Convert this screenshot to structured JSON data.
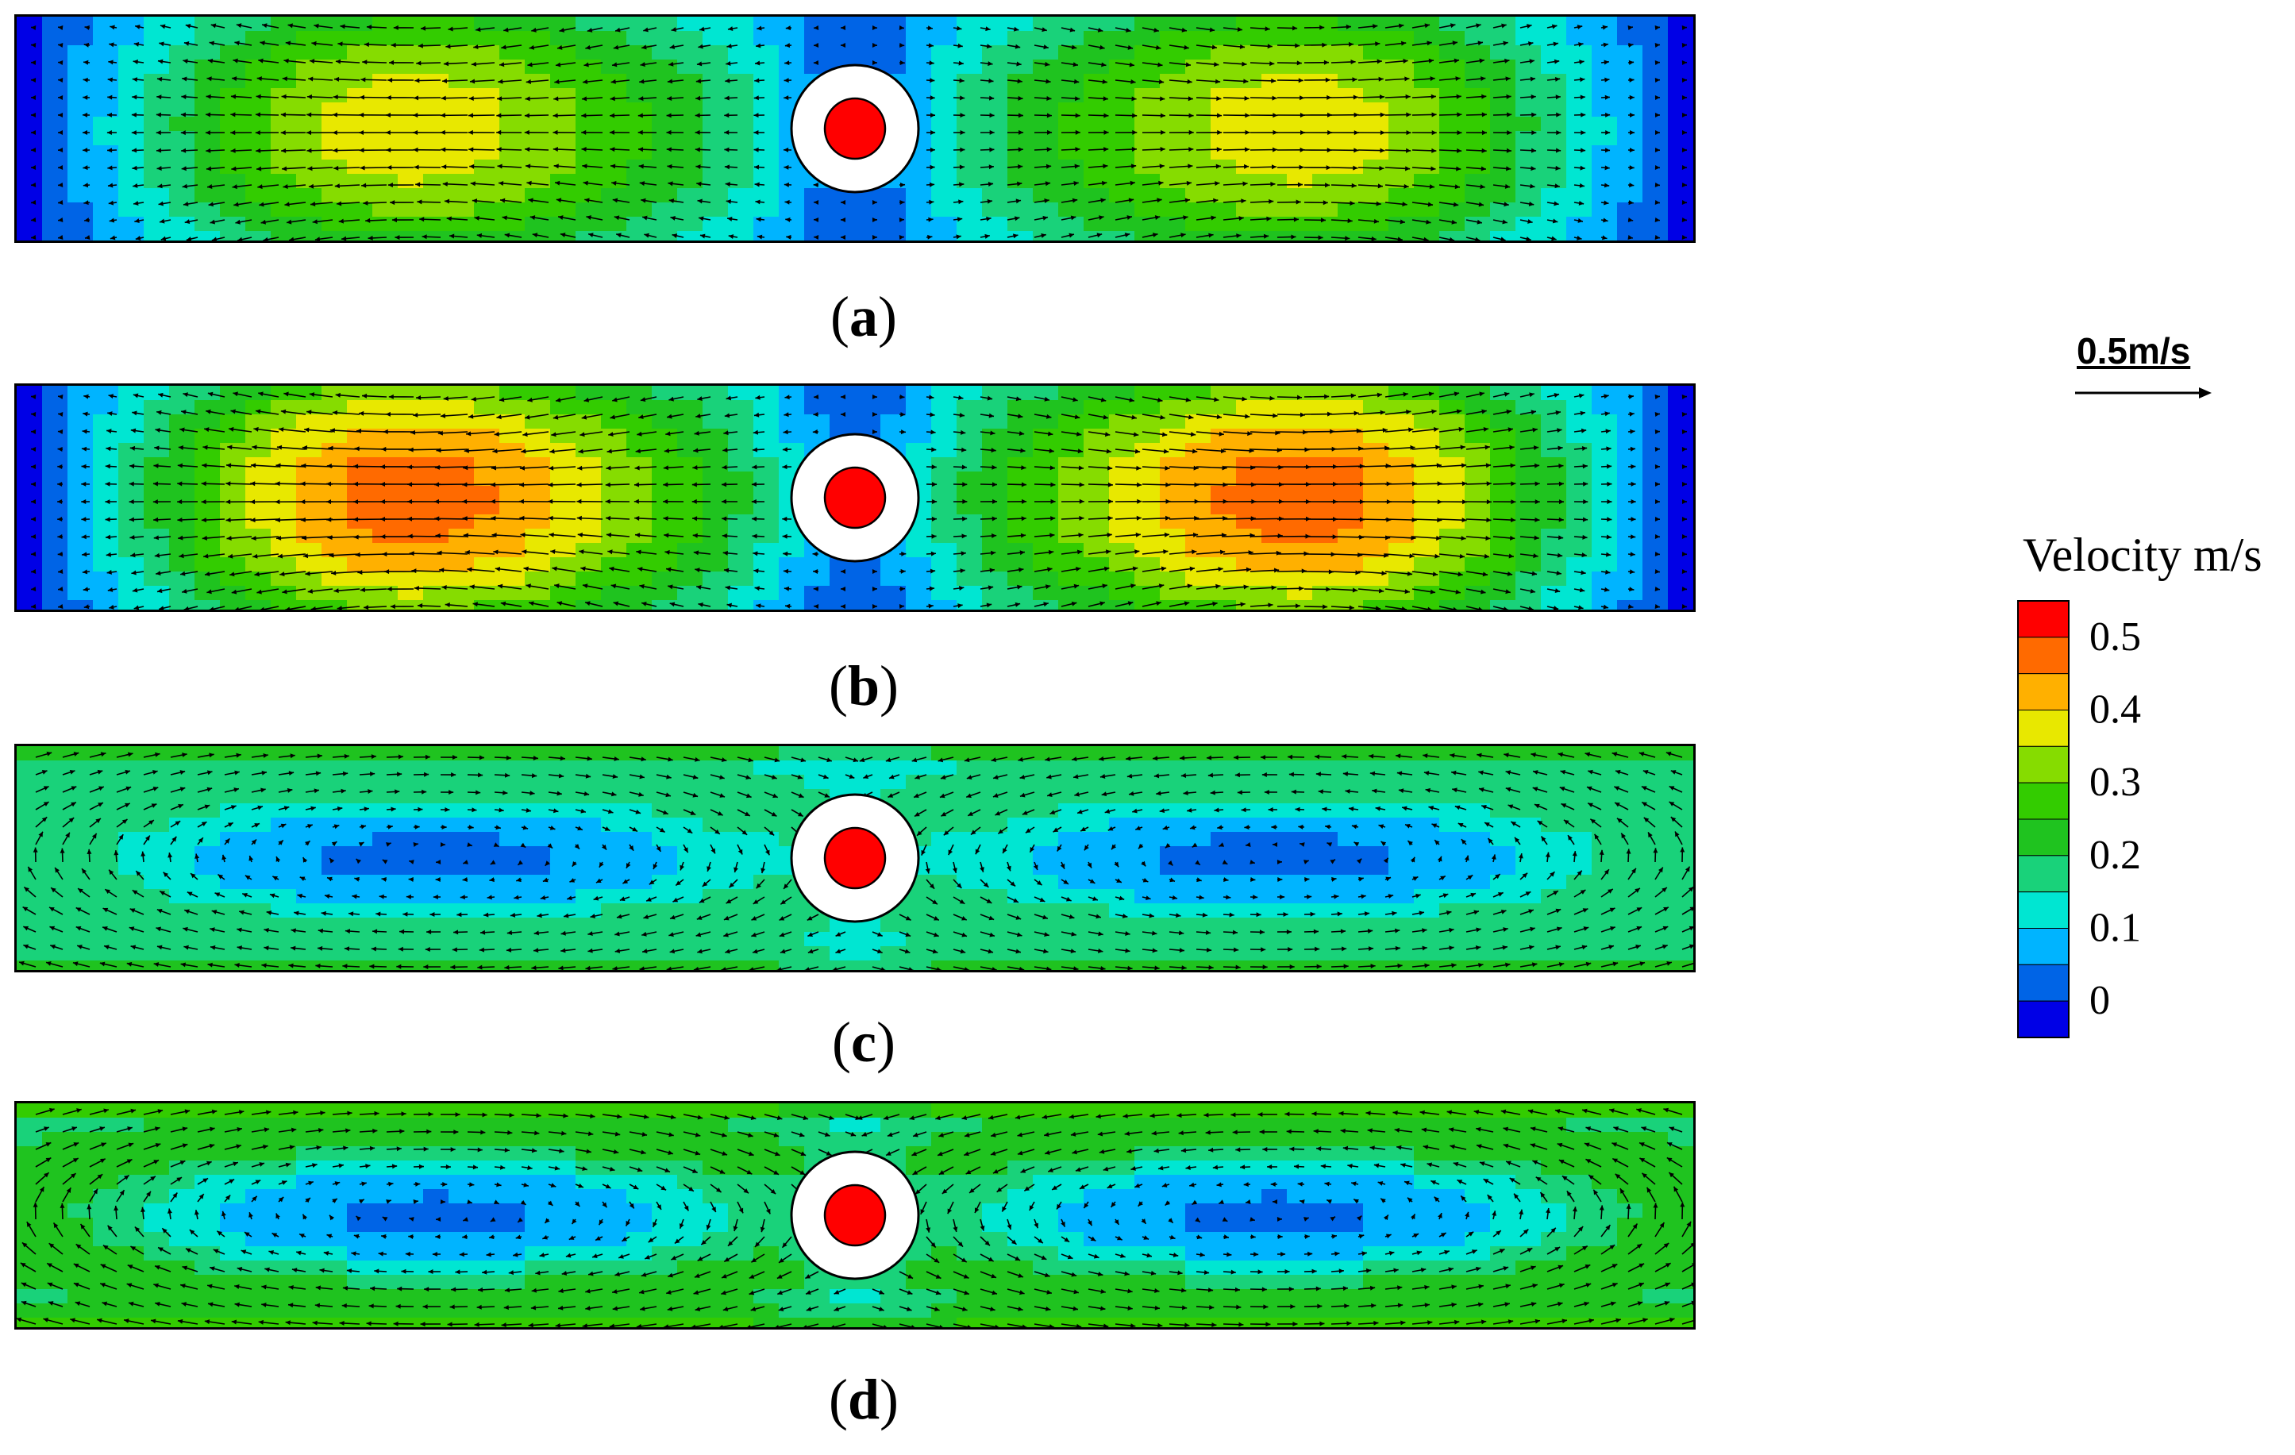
{
  "chart_data": [
    {
      "type": "vector_contour",
      "panel_label": "a",
      "title": "",
      "flow_pattern": "horizontal_outflow",
      "peak_speed_m_s": 0.38,
      "core_speed_m_s": 0.3
    },
    {
      "type": "vector_contour",
      "panel_label": "b",
      "title": "",
      "flow_pattern": "horizontal_outflow",
      "peak_speed_m_s": 0.47,
      "core_speed_m_s": 0.35
    },
    {
      "type": "vector_contour",
      "panel_label": "c",
      "title": "",
      "flow_pattern": "swirl",
      "peak_speed_m_s": 0.23,
      "core_speed_m_s": 0.05
    },
    {
      "type": "vector_contour",
      "panel_label": "d",
      "title": "",
      "flow_pattern": "swirl",
      "peak_speed_m_s": 0.27,
      "core_speed_m_s": 0.05
    }
  ],
  "legend": {
    "title": "Velocity m/s",
    "tick_labels": [
      "0.5",
      "0.4",
      "0.3",
      "0.2",
      "0.1",
      "0"
    ],
    "colors": [
      "#ff0000",
      "#ff6a00",
      "#ffb000",
      "#e8e800",
      "#86dc00",
      "#33cc00",
      "#1fc31f",
      "#19d27a",
      "#00e6d2",
      "#00b4ff",
      "#0064e6",
      "#0000e6"
    ]
  },
  "reference_vector": {
    "label": "0.5m/s",
    "magnitude_m_s": 0.5
  },
  "colors": {
    "rotor_fill": "#ff0000",
    "rotor_ring": "#ffffff",
    "vector_color": "#000000"
  }
}
